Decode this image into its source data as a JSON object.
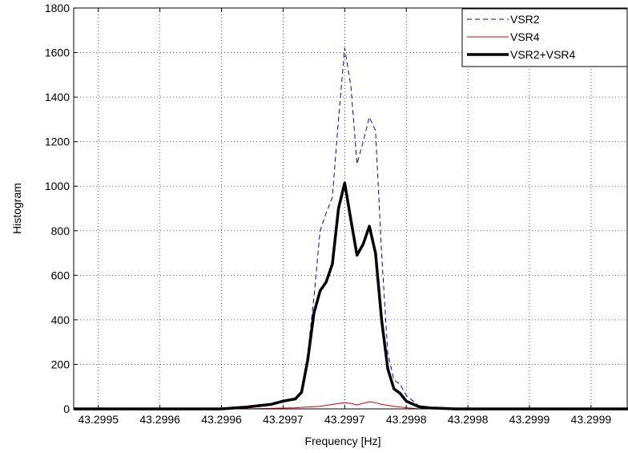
{
  "chart_data": {
    "type": "line",
    "title": "",
    "xlabel": "Frequency [Hz]",
    "ylabel": "Histogram",
    "xlim": [
      43.29948,
      43.29993
    ],
    "ylim": [
      0,
      1800
    ],
    "xticks": [
      43.2995,
      43.29955,
      43.2996,
      43.29965,
      43.2997,
      43.29975,
      43.2998,
      43.29985,
      43.2999
    ],
    "xtick_labels": [
      "43.2995",
      "43.2996",
      "43.2996",
      "43.2997",
      "43.2997",
      "43.2998",
      "43.2998",
      "43.2999",
      "43.2999"
    ],
    "yticks": [
      0,
      200,
      400,
      600,
      800,
      1000,
      1200,
      1400,
      1600,
      1800
    ],
    "ytick_labels": [
      "0",
      "200",
      "400",
      "600",
      "800",
      "1000",
      "1200",
      "1400",
      "1600",
      "1800"
    ],
    "grid": true,
    "legend_position": "top-right",
    "series": [
      {
        "name": "VSR2",
        "style": "dashed",
        "color": "#0000cc",
        "x": [
          43.29948,
          43.2996,
          43.29962,
          43.29964,
          43.29965,
          43.29966,
          43.299665,
          43.29967,
          43.299675,
          43.29968,
          43.299685,
          43.29969,
          43.299695,
          43.2997,
          43.299705,
          43.29971,
          43.299715,
          43.29972,
          43.299725,
          43.29973,
          43.299735,
          43.29974,
          43.299745,
          43.29975,
          43.29976,
          43.29977,
          43.29978,
          43.29979,
          43.29993
        ],
        "y": [
          0,
          0,
          5,
          20,
          35,
          50,
          80,
          250,
          500,
          800,
          880,
          950,
          1300,
          1620,
          1450,
          1100,
          1200,
          1310,
          1250,
          700,
          250,
          130,
          110,
          60,
          15,
          5,
          2,
          0,
          0
        ]
      },
      {
        "name": "VSR4",
        "style": "solid",
        "color": "#dd0000",
        "x": [
          43.29948,
          43.29962,
          43.29966,
          43.29968,
          43.29969,
          43.2997,
          43.299705,
          43.29971,
          43.299715,
          43.29972,
          43.299725,
          43.29973,
          43.29974,
          43.29975,
          43.29976,
          43.29993
        ],
        "y": [
          0,
          0,
          5,
          12,
          20,
          28,
          25,
          18,
          25,
          32,
          28,
          20,
          12,
          5,
          0,
          0
        ]
      },
      {
        "name": "VSR2+VSR4",
        "style": "solid-thick",
        "color": "#000000",
        "x": [
          43.29948,
          43.2996,
          43.29962,
          43.29964,
          43.29965,
          43.29966,
          43.299665,
          43.29967,
          43.299675,
          43.29968,
          43.299685,
          43.29969,
          43.299695,
          43.2997,
          43.299705,
          43.29971,
          43.299715,
          43.29972,
          43.299725,
          43.29973,
          43.299735,
          43.29974,
          43.299745,
          43.29975,
          43.29976,
          43.29977,
          43.29978,
          43.29979,
          43.29993
        ],
        "y": [
          0,
          0,
          8,
          20,
          35,
          45,
          75,
          220,
          430,
          530,
          570,
          650,
          900,
          1015,
          850,
          690,
          740,
          820,
          700,
          400,
          180,
          90,
          70,
          35,
          10,
          4,
          2,
          0,
          0
        ]
      }
    ]
  }
}
